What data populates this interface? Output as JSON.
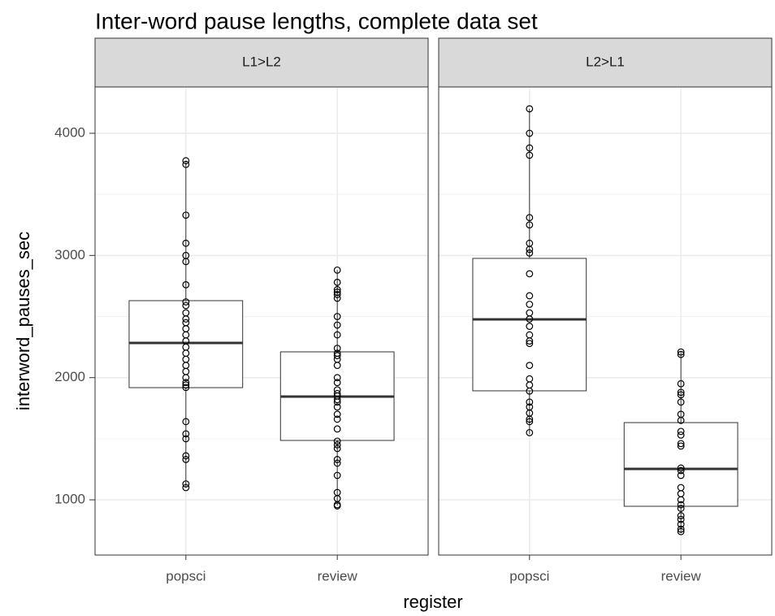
{
  "chart_data": {
    "type": "box",
    "title": "Inter-word pause lengths, complete data set",
    "x_label": "register",
    "y_label": "interword_pauses_sec",
    "ylim": [
      548,
      4379
    ],
    "yticks": [
      1000,
      2000,
      3000,
      4000
    ],
    "y_minor_grid": [
      1500,
      2500,
      3500
    ],
    "grid": true,
    "categories": [
      "popsci",
      "review"
    ],
    "color": "#333333",
    "facets": [
      {
        "name": "L1>L2",
        "boxes": [
          {
            "min": 1100,
            "q1": 1918,
            "median": 2284,
            "q3": 2630,
            "max": 3775,
            "points": [
              3775,
              3745,
              3330,
              3100,
              3000,
              2950,
              2760,
              2620,
              2590,
              2530,
              2480,
              2450,
              2400,
              2350,
              2300,
              2250,
              2200,
              2150,
              2100,
              2050,
              2000,
              1960,
              1940,
              1920,
              1640,
              1540,
              1500,
              1360,
              1330,
              1130,
              1100
            ]
          },
          {
            "min": 953,
            "q1": 1486,
            "median": 1845,
            "q3": 2211,
            "max": 2880,
            "points": [
              2880,
              2780,
              2720,
              2700,
              2680,
              2650,
              2500,
              2430,
              2350,
              2240,
              2200,
              2180,
              2150,
              2100,
              2000,
              1960,
              1900,
              1870,
              1850,
              1820,
              1800,
              1760,
              1700,
              1660,
              1580,
              1480,
              1450,
              1420,
              1330,
              1300,
              1200,
              1060,
              1010,
              960,
              950
            ]
          }
        ]
      },
      {
        "name": "L2>L1",
        "boxes": [
          {
            "min": 1539,
            "q1": 1892,
            "median": 2477,
            "q3": 2976,
            "max": 4200,
            "points": [
              4200,
              4000,
              3880,
              3820,
              3310,
              3250,
              3100,
              3050,
              3020,
              2850,
              2670,
              2600,
              2530,
              2480,
              2420,
              2350,
              2300,
              2280,
              2100,
              1990,
              1940,
              1890,
              1800,
              1760,
              1710,
              1660,
              1640,
              1550
            ]
          },
          {
            "min": 727,
            "q1": 947,
            "median": 1253,
            "q3": 1632,
            "max": 2211,
            "points": [
              2210,
              2190,
              1950,
              1880,
              1860,
              1800,
              1700,
              1650,
              1560,
              1530,
              1460,
              1440,
              1260,
              1240,
              1200,
              1100,
              1050,
              1000,
              960,
              930,
              870,
              840,
              800,
              760,
              740
            ]
          }
        ]
      }
    ]
  }
}
